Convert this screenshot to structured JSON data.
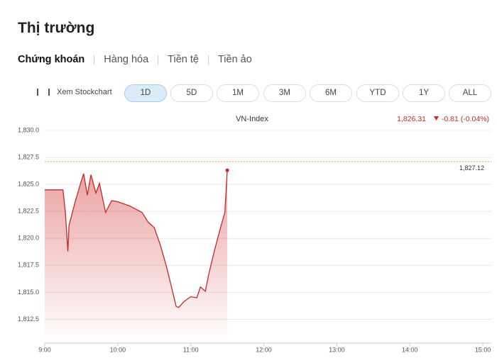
{
  "header": {
    "title": "Thị trường"
  },
  "tabs": [
    "Chứng khoán",
    "Hàng hóa",
    "Tiền tệ",
    "Tiền ảo"
  ],
  "stockchart_link": "Xem Stockchart",
  "ranges": [
    "1D",
    "5D",
    "1M",
    "3M",
    "6M",
    "YTD",
    "1Y",
    "ALL"
  ],
  "chart_data": {
    "type": "line",
    "title": "VN-Index",
    "last_label": "1,826.31",
    "change": "-0.81 (-0.04%)",
    "color": "#c62828",
    "x": [
      9,
      9.25,
      9.283,
      9.317,
      9.333,
      9.417,
      9.5,
      9.533,
      9.583,
      9.633,
      9.7,
      9.75,
      9.833,
      9.917,
      10,
      10.167,
      10.333,
      10.417,
      10.5,
      10.583,
      10.667,
      10.75,
      10.8,
      10.833,
      10.917,
      11,
      11.083,
      11.133,
      11.2,
      11.25,
      11.333,
      11.417,
      11.467,
      11.5
    ],
    "values": [
      1824.5,
      1824.5,
      1822.4,
      1818.8,
      1821.2,
      1823.4,
      1825.3,
      1826.0,
      1824.0,
      1825.9,
      1824.2,
      1825.1,
      1822.4,
      1823.5,
      1823.4,
      1823.0,
      1822.4,
      1821.5,
      1821.0,
      1819.4,
      1817.4,
      1815.1,
      1813.7,
      1813.6,
      1814.2,
      1814.6,
      1814.5,
      1815.5,
      1815.1,
      1816.8,
      1819.1,
      1821.2,
      1822.4,
      1826.31
    ],
    "reference": {
      "value": 1827.12,
      "label": "1,827.12",
      "color": "#f0a030"
    },
    "xlim": [
      9,
      15
    ],
    "xticks": [
      {
        "value": 9,
        "label": "9:00"
      },
      {
        "value": 10,
        "label": "10:00"
      },
      {
        "value": 11,
        "label": "11:00"
      },
      {
        "value": 12,
        "label": "12:00"
      },
      {
        "value": 13,
        "label": "13:00"
      },
      {
        "value": 14,
        "label": "14:00"
      },
      {
        "value": 15,
        "label": "15:00"
      }
    ],
    "ylim": [
      1810.3,
      1830.9
    ],
    "yticks": [
      {
        "value": 1812.5,
        "label": "1,812.5"
      },
      {
        "value": 1815,
        "label": "1,815.0"
      },
      {
        "value": 1817.5,
        "label": "1,817.5"
      },
      {
        "value": 1820,
        "label": "1,820.0"
      },
      {
        "value": 1822.5,
        "label": "1,822.5"
      },
      {
        "value": 1825,
        "label": "1,825.0"
      },
      {
        "value": 1827.5,
        "label": "1,827.5"
      },
      {
        "value": 1830,
        "label": "1,830.0"
      }
    ],
    "grid": true
  }
}
